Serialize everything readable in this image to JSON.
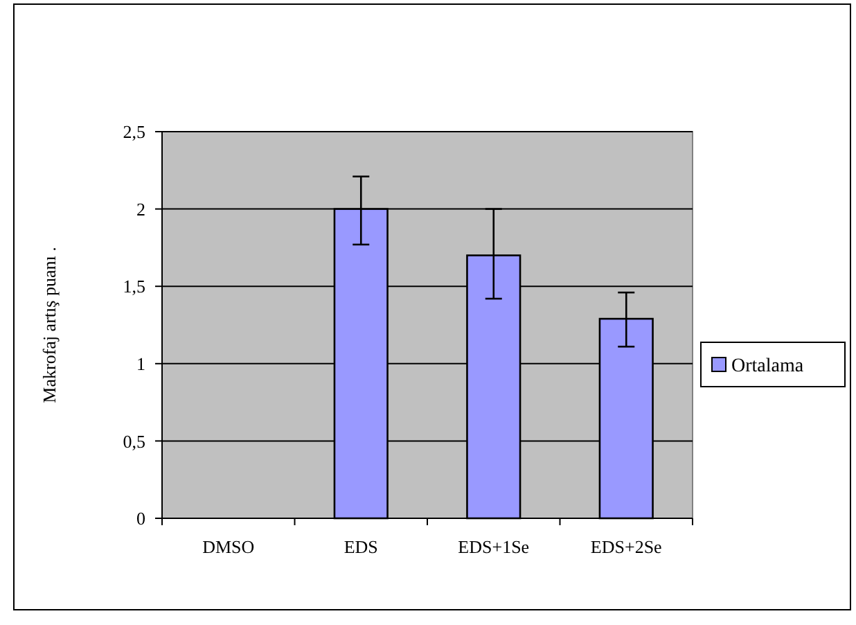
{
  "chart_data": {
    "type": "bar",
    "ylabel": "Makrofaj artış puanı  .",
    "categories": [
      "DMSO",
      "EDS",
      "EDS+1Se",
      "EDS+2Se"
    ],
    "series": [
      {
        "name": "Ortalama",
        "color": "#9999ff",
        "values": [
          0,
          2.0,
          1.7,
          1.29
        ],
        "errors": [
          null,
          [
            1.77,
            2.21
          ],
          [
            1.42,
            2.0
          ],
          [
            1.11,
            1.46
          ]
        ]
      }
    ],
    "ylim": [
      0,
      2.5
    ],
    "yticks": [
      {
        "value": 0,
        "label": "0"
      },
      {
        "value": 0.5,
        "label": "0,5"
      },
      {
        "value": 1,
        "label": "1"
      },
      {
        "value": 1.5,
        "label": "1,5"
      },
      {
        "value": 2,
        "label": "2"
      },
      {
        "value": 2.5,
        "label": "2,5"
      }
    ],
    "grid": "y",
    "legend": "right"
  }
}
